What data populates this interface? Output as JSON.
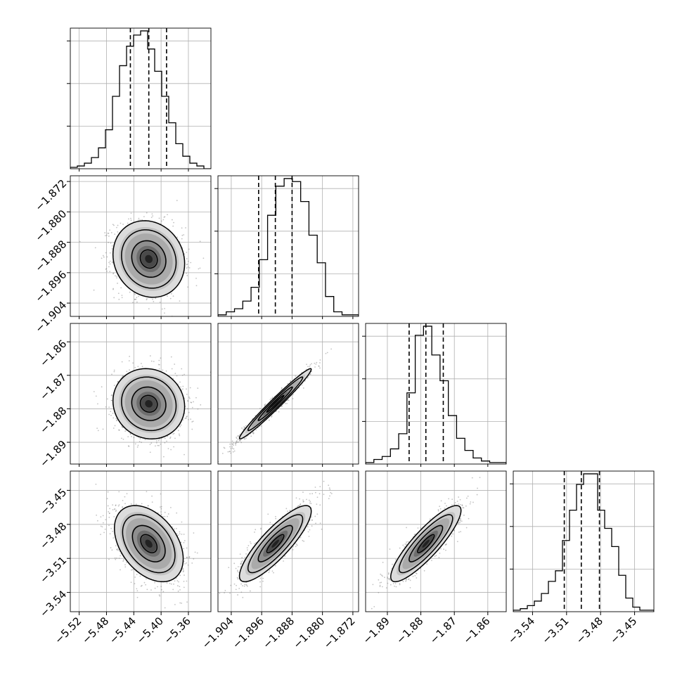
{
  "chart_data": {
    "type": "corner",
    "parameters": [
      {
        "ticks": [
          -5.52,
          -5.48,
          -5.44,
          -5.4,
          -5.36
        ],
        "tick_labels": [
          "−5.52",
          "−5.48",
          "−5.44",
          "−5.40",
          "−5.36"
        ],
        "range": [
          -5.533,
          -5.327
        ],
        "quantiles": [
          -5.445,
          -5.418,
          -5.392
        ],
        "hist_counts": [
          1,
          2,
          4,
          8,
          15,
          28,
          52,
          74,
          88,
          96,
          99,
          86,
          70,
          52,
          33,
          18,
          9,
          4,
          2,
          0
        ]
      },
      {
        "ticks": [
          -1.904,
          -1.896,
          -1.888,
          -1.88,
          -1.872
        ],
        "tick_labels": [
          "−1.904",
          "−1.896",
          "−1.888",
          "−1.880",
          "−1.872"
        ],
        "range": [
          -1.9075,
          -1.8705
        ],
        "quantiles": [
          -1.8968,
          -1.8924,
          -1.888
        ],
        "hist_counts": [
          1,
          3,
          5,
          10,
          19,
          37,
          66,
          85,
          90,
          88,
          75,
          53,
          35,
          13,
          3,
          1,
          1
        ]
      },
      {
        "ticks": [
          -1.89,
          -1.88,
          -1.87,
          -1.86
        ],
        "tick_labels": [
          "−1.89",
          "−1.88",
          "−1.87",
          "−1.86"
        ],
        "range": [
          -1.8965,
          -1.8545
        ],
        "quantiles": [
          -1.8835,
          -1.8785,
          -1.8733
        ],
        "hist_counts": [
          1,
          3,
          5,
          10,
          20,
          47,
          85,
          91,
          72,
          55,
          32,
          17,
          9,
          4,
          2,
          1,
          1
        ]
      },
      {
        "ticks": [
          -3.54,
          -3.51,
          -3.48,
          -3.45
        ],
        "tick_labels": [
          "−3.54",
          "−3.51",
          "−3.48",
          "−3.45"
        ],
        "range": [
          -3.557,
          -3.433
        ],
        "quantiles": [
          -3.512,
          -3.497,
          -3.481
        ],
        "hist_counts": [
          1,
          2,
          4,
          7,
          12,
          20,
          27,
          47,
          67,
          84,
          91,
          91,
          67,
          55,
          43,
          24,
          9,
          3,
          1,
          1
        ]
      }
    ],
    "pairs": [
      {
        "x": 0,
        "y": 1,
        "mean": [
          -5.418,
          -1.8924
        ],
        "sd": [
          0.025,
          0.0048
        ],
        "rho": -0.12
      },
      {
        "x": 0,
        "y": 2,
        "mean": [
          -5.418,
          -1.8785
        ],
        "sd": [
          0.025,
          0.005
        ],
        "rho": -0.08
      },
      {
        "x": 1,
        "y": 2,
        "mean": [
          -1.8924,
          -1.8785
        ],
        "sd": [
          0.0045,
          0.005
        ],
        "rho": 0.98
      },
      {
        "x": 0,
        "y": 3,
        "mean": [
          -5.418,
          -3.497
        ],
        "sd": [
          0.024,
          0.016
        ],
        "rho": -0.4
      },
      {
        "x": 1,
        "y": 3,
        "mean": [
          -1.8924,
          -3.497
        ],
        "sd": [
          0.0045,
          0.016
        ],
        "rho": 0.85
      },
      {
        "x": 2,
        "y": 3,
        "mean": [
          -1.8785,
          -3.497
        ],
        "sd": [
          0.005,
          0.016
        ],
        "rho": 0.87
      }
    ],
    "grid": true,
    "style": {
      "line_color": "#000000",
      "grid_color": "#b0b0b0",
      "point_color": "#7a7a7a"
    }
  }
}
